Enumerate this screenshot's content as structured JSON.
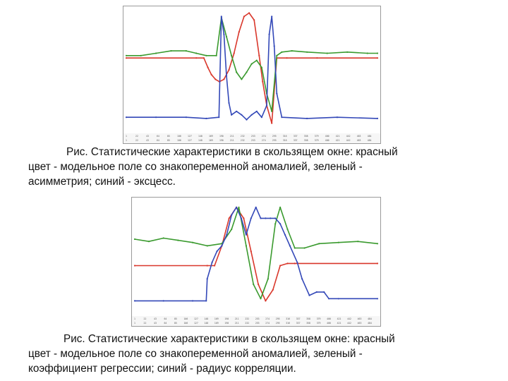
{
  "figures": [
    {
      "caption_lines": [
        "Рис. Статистические характеристики в скользящем окне: красный",
        "цвет - модельное поле со знакопеременной аномалией,  зеленый -",
        "асимметрия; синий - эксцесс."
      ]
    },
    {
      "caption_lines": [
        "Рис. Статистические характеристики в скользящем окне: красный",
        "цвет - модельное поле  со знакопеременной аномалией,  зеленый -",
        "коэффициент регрессии; синий - радиус корреляции."
      ]
    }
  ],
  "chart_data": [
    {
      "type": "line",
      "title": "",
      "xlabel": "",
      "ylabel": "",
      "x_ticks_row1": [
        "1",
        "22",
        "43",
        "64",
        "85",
        "106",
        "127",
        "148",
        "169",
        "190",
        "211",
        "232",
        "253",
        "274",
        "295",
        "316",
        "337",
        "358",
        "379",
        "400",
        "421",
        "442",
        "463",
        "484"
      ],
      "x_ticks_row2": [
        "1",
        "22",
        "43",
        "64",
        "85",
        "106",
        "127",
        "148",
        "169",
        "190",
        "211",
        "232",
        "253",
        "274",
        "295",
        "316",
        "337",
        "358",
        "379",
        "400",
        "421",
        "442",
        "463",
        "484"
      ],
      "xlim": [
        1,
        500
      ],
      "ylim": [
        0,
        1
      ],
      "grid": false,
      "series": [
        {
          "color": "#d9372b",
          "x": [
            1,
            140,
            155,
            163,
            170,
            178,
            186,
            195,
            205,
            215,
            225,
            235,
            245,
            255,
            265,
            272,
            280,
            290,
            300,
            320,
            380,
            500
          ],
          "y": [
            0.6,
            0.6,
            0.6,
            0.52,
            0.46,
            0.42,
            0.4,
            0.42,
            0.5,
            0.64,
            0.82,
            0.95,
            0.98,
            0.92,
            0.62,
            0.4,
            0.2,
            0.05,
            0.6,
            0.6,
            0.6,
            0.6
          ]
        },
        {
          "color": "#3a9a2e",
          "x": [
            1,
            30,
            60,
            90,
            120,
            140,
            160,
            180,
            190,
            200,
            210,
            220,
            230,
            240,
            250,
            260,
            270,
            280,
            290,
            300,
            310,
            330,
            360,
            400,
            440,
            480,
            500
          ],
          "y": [
            0.62,
            0.62,
            0.64,
            0.66,
            0.66,
            0.64,
            0.62,
            0.62,
            0.94,
            0.78,
            0.62,
            0.48,
            0.42,
            0.48,
            0.55,
            0.58,
            0.52,
            0.3,
            0.15,
            0.62,
            0.65,
            0.66,
            0.65,
            0.64,
            0.65,
            0.64,
            0.64
          ]
        },
        {
          "color": "#3348b8",
          "x": [
            1,
            60,
            120,
            160,
            185,
            190,
            195,
            200,
            205,
            210,
            220,
            230,
            240,
            250,
            260,
            270,
            280,
            285,
            290,
            295,
            300,
            310,
            360,
            420,
            500
          ],
          "y": [
            0.1,
            0.1,
            0.1,
            0.09,
            0.1,
            0.95,
            0.8,
            0.45,
            0.22,
            0.12,
            0.15,
            0.12,
            0.08,
            0.12,
            0.15,
            0.1,
            0.2,
            0.8,
            0.95,
            0.7,
            0.3,
            0.1,
            0.09,
            0.1,
            0.09
          ]
        }
      ]
    },
    {
      "type": "line",
      "title": "",
      "xlabel": "",
      "ylabel": "",
      "x_ticks_row1": [
        "1",
        "22",
        "43",
        "64",
        "85",
        "106",
        "127",
        "148",
        "169",
        "190",
        "211",
        "232",
        "253",
        "274",
        "295",
        "316",
        "337",
        "358",
        "379",
        "400",
        "421",
        "442",
        "463",
        "484"
      ],
      "x_ticks_row2": [
        "1",
        "22",
        "43",
        "64",
        "85",
        "106",
        "127",
        "148",
        "169",
        "190",
        "211",
        "232",
        "253",
        "274",
        "295",
        "316",
        "337",
        "358",
        "379",
        "400",
        "421",
        "442",
        "463",
        "484"
      ],
      "xlim": [
        1,
        500
      ],
      "ylim": [
        0,
        1
      ],
      "grid": false,
      "series": [
        {
          "color": "#d9372b",
          "x": [
            1,
            150,
            165,
            180,
            195,
            210,
            225,
            240,
            255,
            270,
            285,
            300,
            315,
            330,
            500
          ],
          "y": [
            0.42,
            0.42,
            0.42,
            0.6,
            0.85,
            0.95,
            0.85,
            0.55,
            0.25,
            0.1,
            0.2,
            0.42,
            0.44,
            0.44,
            0.44
          ]
        },
        {
          "color": "#3a9a2e",
          "x": [
            1,
            30,
            60,
            90,
            120,
            150,
            180,
            200,
            215,
            230,
            245,
            260,
            275,
            290,
            300,
            315,
            330,
            350,
            380,
            420,
            460,
            500
          ],
          "y": [
            0.66,
            0.64,
            0.67,
            0.65,
            0.63,
            0.6,
            0.62,
            0.75,
            0.95,
            0.6,
            0.25,
            0.12,
            0.3,
            0.8,
            0.95,
            0.75,
            0.58,
            0.58,
            0.62,
            0.63,
            0.64,
            0.62
          ]
        },
        {
          "color": "#3348b8",
          "x": [
            1,
            60,
            120,
            148,
            150,
            160,
            170,
            180,
            190,
            200,
            210,
            220,
            230,
            240,
            250,
            260,
            270,
            280,
            290,
            300,
            310,
            320,
            335,
            345,
            360,
            375,
            390,
            400,
            420,
            500
          ],
          "y": [
            0.1,
            0.1,
            0.1,
            0.1,
            0.3,
            0.45,
            0.55,
            0.6,
            0.7,
            0.88,
            0.95,
            0.85,
            0.7,
            0.85,
            0.95,
            0.85,
            0.85,
            0.85,
            0.85,
            0.8,
            0.7,
            0.6,
            0.45,
            0.3,
            0.15,
            0.18,
            0.18,
            0.12,
            0.12,
            0.12
          ]
        }
      ]
    }
  ]
}
